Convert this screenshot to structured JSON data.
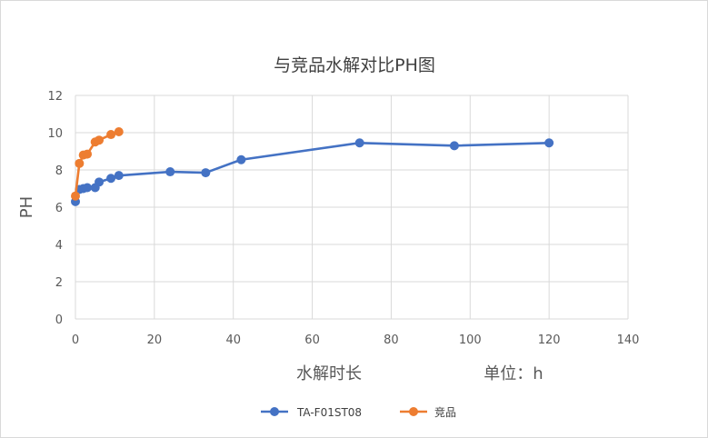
{
  "chart_data": {
    "type": "scatter",
    "title": "与竞品水解对比PH图",
    "xlabel": "水解时长",
    "xunit_label": "单位：h",
    "ylabel": "PH",
    "xlim": [
      0,
      140
    ],
    "ylim": [
      0,
      12
    ],
    "xticks": [
      0,
      20,
      40,
      60,
      80,
      100,
      120,
      140
    ],
    "yticks": [
      0,
      2,
      4,
      6,
      8,
      10,
      12
    ],
    "grid": true,
    "legend_position": "bottom",
    "series": [
      {
        "name": "TA-F01ST08",
        "color": "#4472C4",
        "points": [
          [
            0,
            6.3
          ],
          [
            1,
            6.95
          ],
          [
            2,
            7.0
          ],
          [
            3,
            7.05
          ],
          [
            5,
            7.05
          ],
          [
            6,
            7.35
          ],
          [
            9,
            7.55
          ],
          [
            11,
            7.7
          ],
          [
            24,
            7.9
          ],
          [
            33,
            7.85
          ],
          [
            42,
            8.55
          ],
          [
            72,
            9.45
          ],
          [
            96,
            9.3
          ],
          [
            120,
            9.45
          ]
        ]
      },
      {
        "name": "竞品",
        "color": "#ED7D31",
        "points": [
          [
            0,
            6.6
          ],
          [
            1,
            8.35
          ],
          [
            2,
            8.8
          ],
          [
            3,
            8.85
          ],
          [
            5,
            9.5
          ],
          [
            6,
            9.6
          ],
          [
            9,
            9.9
          ],
          [
            11,
            10.05
          ]
        ]
      }
    ]
  }
}
